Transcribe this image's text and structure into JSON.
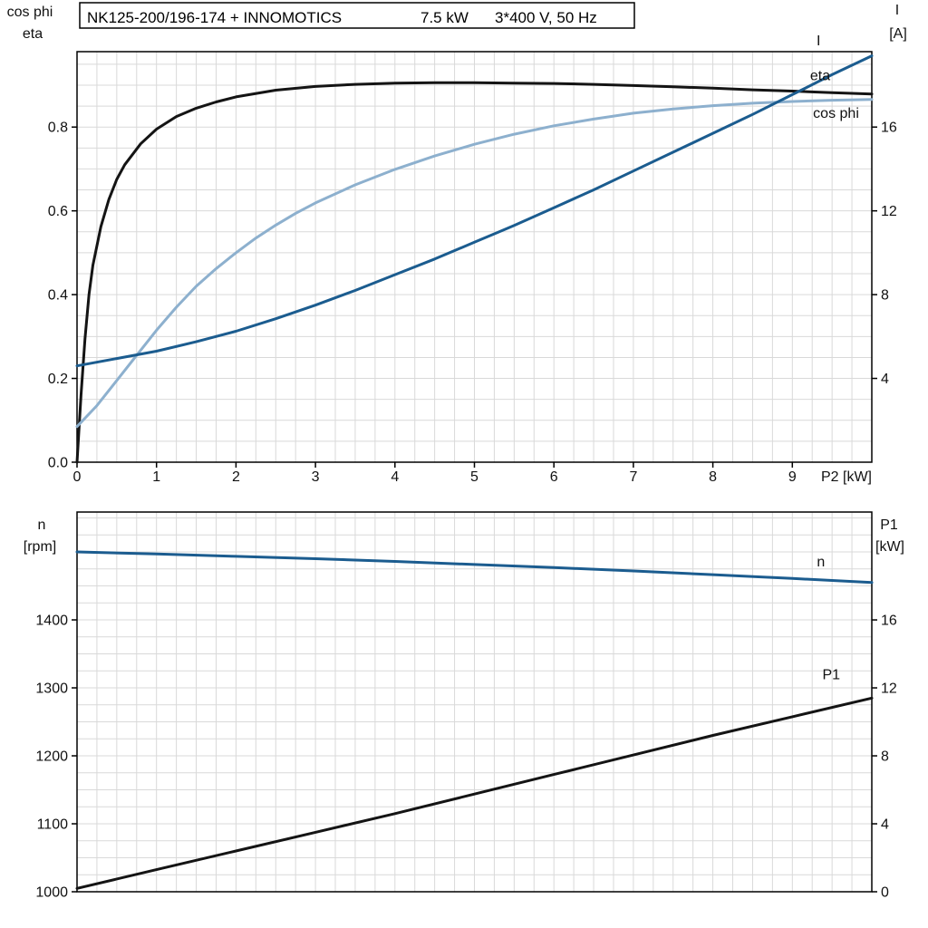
{
  "colors": {
    "black": "#141414",
    "dark_blue": "#1b5c8f",
    "light_blue": "#8db0ce",
    "grid": "#d9d9d9",
    "frame": "#000000"
  },
  "header": {
    "title_part1": "NK125-200/196-174 + INNOMOTICS",
    "title_part2": "7.5 kW",
    "title_part3": "3*400 V, 50 Hz"
  },
  "top_chart_labels": {
    "left_line1": "cos phi",
    "left_line2": "eta",
    "right_line1": "I",
    "right_line2": "[A]"
  },
  "bottom_chart_labels": {
    "left_line1": "n",
    "left_line2": "[rpm]",
    "right_line1": "P1",
    "right_line2": "[kW]"
  },
  "chart_data": [
    {
      "type": "line",
      "title": "NK125-200/196-174 + INNOMOTICS 7.5 kW 3*400 V, 50 Hz",
      "xlabel": "P2 [kW]",
      "ylabel_left": "cos phi / eta",
      "ylabel_right": "I [A]",
      "xlim": [
        0,
        10
      ],
      "ylim_left": [
        0,
        0.98
      ],
      "ylim_right": [
        0,
        19.6
      ],
      "minor_x": 0.25,
      "minor_y_left": 0.05,
      "x_ticks": [
        {
          "v": 0,
          "t": "0"
        },
        {
          "v": 1,
          "t": "1"
        },
        {
          "v": 2,
          "t": "2"
        },
        {
          "v": 3,
          "t": "3"
        },
        {
          "v": 4,
          "t": "4"
        },
        {
          "v": 5,
          "t": "5"
        },
        {
          "v": 6,
          "t": "6"
        },
        {
          "v": 7,
          "t": "7"
        },
        {
          "v": 8,
          "t": "8"
        },
        {
          "v": 9,
          "t": "9"
        }
      ],
      "y_ticks_left": [
        {
          "v": 0,
          "t": "0.0"
        },
        {
          "v": 0.2,
          "t": "0.2"
        },
        {
          "v": 0.4,
          "t": "0.4"
        },
        {
          "v": 0.6,
          "t": "0.6"
        },
        {
          "v": 0.8,
          "t": "0.8"
        }
      ],
      "y_ticks_right": [
        {
          "v": 4,
          "t": "4"
        },
        {
          "v": 8,
          "t": "8"
        },
        {
          "v": 12,
          "t": "12"
        },
        {
          "v": 16,
          "t": "16"
        }
      ],
      "series": [
        {
          "name": "eta",
          "axis": "left",
          "color": "black",
          "width": 3,
          "x": [
            0,
            0.05,
            0.1,
            0.15,
            0.2,
            0.3,
            0.4,
            0.5,
            0.6,
            0.8,
            1.0,
            1.25,
            1.5,
            1.75,
            2,
            2.5,
            3,
            3.5,
            4,
            4.5,
            5,
            5.5,
            6,
            6.5,
            7,
            7.5,
            8,
            8.5,
            9,
            9.5,
            10
          ],
          "y": [
            0,
            0.16,
            0.295,
            0.4,
            0.47,
            0.562,
            0.627,
            0.675,
            0.71,
            0.76,
            0.795,
            0.825,
            0.845,
            0.86,
            0.872,
            0.888,
            0.897,
            0.902,
            0.905,
            0.906,
            0.906,
            0.905,
            0.904,
            0.902,
            0.899,
            0.896,
            0.893,
            0.889,
            0.886,
            0.882,
            0.879
          ]
        },
        {
          "name": "cos phi",
          "axis": "left",
          "color": "light_blue",
          "width": 3,
          "x": [
            0,
            0.25,
            0.5,
            0.75,
            1,
            1.25,
            1.5,
            1.75,
            2,
            2.25,
            2.5,
            2.75,
            3,
            3.5,
            4,
            4.5,
            5,
            5.5,
            6,
            6.5,
            7,
            7.5,
            8,
            8.5,
            9,
            9.5,
            10
          ],
          "y": [
            0.085,
            0.135,
            0.195,
            0.255,
            0.315,
            0.37,
            0.42,
            0.462,
            0.5,
            0.535,
            0.566,
            0.594,
            0.619,
            0.662,
            0.699,
            0.731,
            0.759,
            0.783,
            0.803,
            0.819,
            0.833,
            0.843,
            0.851,
            0.857,
            0.861,
            0.864,
            0.866
          ]
        },
        {
          "name": "I",
          "axis": "right",
          "color": "dark_blue",
          "width": 3,
          "x": [
            0,
            0.5,
            1,
            1.5,
            2,
            2.5,
            3,
            3.5,
            4,
            4.5,
            5,
            5.5,
            6,
            6.5,
            7,
            7.5,
            8,
            8.5,
            9,
            9.5,
            10
          ],
          "y": [
            4.6,
            4.95,
            5.3,
            5.75,
            6.25,
            6.85,
            7.5,
            8.2,
            8.95,
            9.7,
            10.5,
            11.3,
            12.15,
            13.0,
            13.9,
            14.8,
            15.7,
            16.6,
            17.55,
            18.5,
            19.4
          ]
        }
      ],
      "annotations": [
        {
          "text": "I",
          "axis": "right",
          "x": 9.33,
          "y": 19.9,
          "color": "dark_blue"
        },
        {
          "text": "eta",
          "axis": "left",
          "x": 9.35,
          "y": 0.912,
          "color": "black"
        },
        {
          "text": "cos phi",
          "axis": "left",
          "x": 9.55,
          "y": 0.822,
          "color": "light_blue"
        }
      ]
    },
    {
      "type": "line",
      "title": "Speed and input power vs P2",
      "xlabel": "",
      "ylabel_left": "n [rpm]",
      "ylabel_right": "P1 [kW]",
      "xlim": [
        0,
        10
      ],
      "ylim_left": [
        1000,
        1558.7
      ],
      "ylim_right": [
        0,
        22.35
      ],
      "minor_x": 0.25,
      "minor_y_left": 25,
      "x_ticks": [],
      "y_ticks_left": [
        {
          "v": 1000,
          "t": "1000"
        },
        {
          "v": 1100,
          "t": "1100"
        },
        {
          "v": 1200,
          "t": "1200"
        },
        {
          "v": 1300,
          "t": "1300"
        },
        {
          "v": 1400,
          "t": "1400"
        }
      ],
      "y_ticks_right": [
        {
          "v": 0,
          "t": "0"
        },
        {
          "v": 4,
          "t": "4"
        },
        {
          "v": 8,
          "t": "8"
        },
        {
          "v": 12,
          "t": "12"
        },
        {
          "v": 16,
          "t": "16"
        }
      ],
      "series": [
        {
          "name": "n",
          "axis": "left",
          "color": "dark_blue",
          "width": 3,
          "x": [
            0,
            1,
            2,
            3,
            4,
            5,
            6,
            7,
            8,
            9,
            10
          ],
          "y": [
            1500,
            1497,
            1493.5,
            1490,
            1486,
            1481.5,
            1477,
            1472,
            1466.5,
            1461,
            1455
          ]
        },
        {
          "name": "P1",
          "axis": "right",
          "color": "black",
          "width": 3,
          "x": [
            0,
            1,
            2,
            3,
            4,
            5,
            6,
            7,
            8,
            9,
            10
          ],
          "y": [
            0.2,
            1.3,
            2.4,
            3.5,
            4.6,
            5.75,
            6.9,
            8.05,
            9.2,
            10.3,
            11.4
          ]
        }
      ],
      "annotations": [
        {
          "text": "n",
          "axis": "left",
          "x": 9.36,
          "y": 1479,
          "color": "dark_blue"
        },
        {
          "text": "P1",
          "axis": "right",
          "x": 9.49,
          "y": 12.5,
          "color": "black"
        }
      ]
    }
  ]
}
